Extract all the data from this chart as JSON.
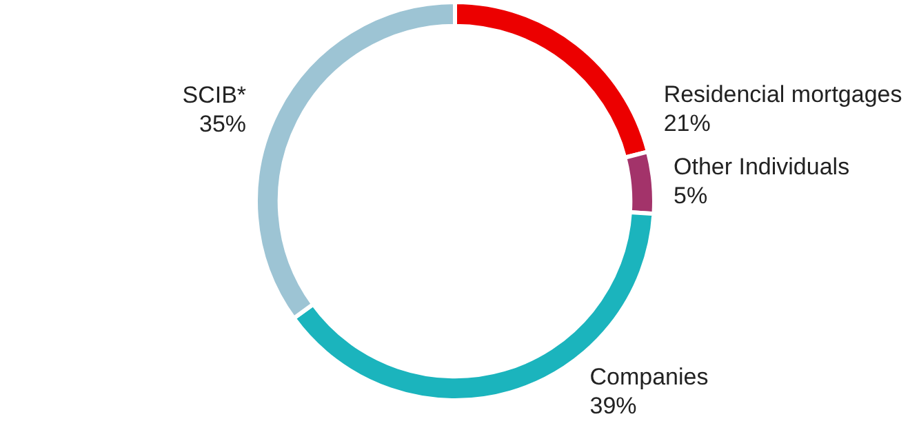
{
  "chart_data": {
    "type": "donut",
    "categories": [
      "Residencial mortgages",
      "Other Individuals",
      "Companies",
      "SCIB*"
    ],
    "values": [
      21,
      5,
      39,
      35
    ],
    "colors": [
      "#ec0000",
      "#a3336a",
      "#1bb4bd",
      "#9dc4d4"
    ],
    "value_labels": [
      "21%",
      "5%",
      "39%",
      "35%"
    ],
    "legend": false
  }
}
